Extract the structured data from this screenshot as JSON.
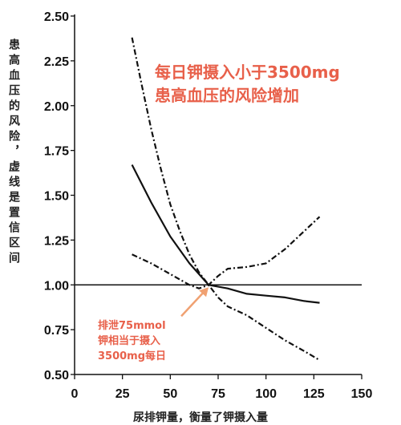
{
  "chart_data": {
    "type": "line",
    "ylabel": "患高血压的风险，虚线是置信区间",
    "xlabel": "尿排钾量，衡量了钾摄入量",
    "xlim": [
      0,
      150
    ],
    "ylim": [
      0.5,
      2.5
    ],
    "x_ticks": [
      "0",
      "25",
      "50",
      "75",
      "100",
      "125",
      "150"
    ],
    "y_ticks": [
      "0.50",
      "0.75",
      "1.00",
      "1.25",
      "1.50",
      "1.75",
      "2.00",
      "2.25",
      "2.50"
    ],
    "reference_line": 1.0,
    "series": [
      {
        "style": "solid",
        "x": [
          30,
          40,
          50,
          60,
          70,
          80,
          90,
          100,
          110,
          120,
          128
        ],
        "y": [
          1.67,
          1.46,
          1.27,
          1.12,
          1.0,
          0.98,
          0.95,
          0.94,
          0.93,
          0.91,
          0.9
        ]
      },
      {
        "style": "dashdot",
        "x": [
          30,
          35,
          40,
          45,
          50,
          55,
          60,
          65,
          70,
          75,
          80,
          90,
          100,
          110,
          120,
          128
        ],
        "y": [
          2.38,
          2.12,
          1.87,
          1.65,
          1.45,
          1.3,
          1.17,
          1.07,
          1.0,
          0.93,
          0.88,
          0.83,
          0.76,
          0.69,
          0.63,
          0.58
        ]
      },
      {
        "style": "dashdot",
        "x": [
          30,
          40,
          50,
          60,
          65,
          70,
          75,
          80,
          90,
          100,
          110,
          120,
          128
        ],
        "y": [
          1.17,
          1.12,
          1.06,
          1.0,
          0.98,
          1.0,
          1.05,
          1.09,
          1.1,
          1.12,
          1.2,
          1.3,
          1.38
        ]
      }
    ],
    "annotations": {
      "headline": [
        "每日钾摄入小于3500mg",
        "患高血压的风险增加"
      ],
      "note": [
        "排泄75mmol",
        "钾相当于摄入",
        "3500mg每日"
      ]
    },
    "colors": {
      "line": "#111111",
      "annotation": "#e8604a",
      "arrow": "#f0a172"
    }
  }
}
